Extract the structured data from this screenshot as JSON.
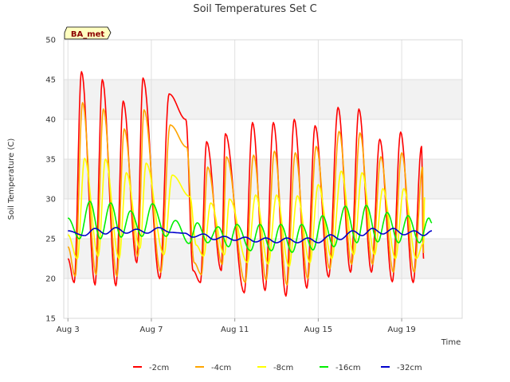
{
  "chart_data": {
    "type": "line",
    "title": "Soil Temperatures Set C",
    "xlabel": "Time",
    "ylabel": "Soil Temperature (C)",
    "station_badge": "BA_met",
    "xlim": [
      2.8,
      21.9
    ],
    "ylim": [
      15,
      50
    ],
    "x_unit": "day of August",
    "x_ticks": [
      {
        "value": 3,
        "label": "Aug 3"
      },
      {
        "value": 7,
        "label": "Aug 7"
      },
      {
        "value": 11,
        "label": "Aug 11"
      },
      {
        "value": 15,
        "label": "Aug 15"
      },
      {
        "value": 19,
        "label": "Aug 19"
      }
    ],
    "y_ticks": [
      15,
      20,
      25,
      30,
      35,
      40,
      45,
      50
    ],
    "grid": true,
    "background_bands": true,
    "legend_position": "bottom",
    "series": [
      {
        "name": "-2cm",
        "color": "#ff0000",
        "peaks": [
          [
            3.65,
            46.0
          ],
          [
            4.65,
            45.0
          ],
          [
            5.65,
            42.3
          ],
          [
            6.6,
            45.2
          ],
          [
            7.85,
            43.2
          ],
          [
            8.65,
            40.0
          ],
          [
            9.65,
            37.2
          ],
          [
            10.55,
            38.2
          ],
          [
            11.85,
            39.6
          ],
          [
            12.85,
            39.6
          ],
          [
            13.85,
            40.0
          ],
          [
            14.85,
            39.2
          ],
          [
            15.95,
            41.5
          ],
          [
            16.95,
            41.3
          ],
          [
            17.95,
            37.5
          ],
          [
            18.95,
            38.4
          ],
          [
            19.95,
            36.6
          ]
        ],
        "troughs": [
          [
            3.0,
            22.5
          ],
          [
            3.3,
            19.5
          ],
          [
            4.3,
            19.2
          ],
          [
            5.3,
            19.1
          ],
          [
            6.3,
            22.0
          ],
          [
            7.4,
            20.0
          ],
          [
            9.0,
            21.0
          ],
          [
            9.35,
            19.5
          ],
          [
            10.35,
            21.0
          ],
          [
            11.45,
            18.2
          ],
          [
            12.45,
            18.5
          ],
          [
            13.45,
            17.8
          ],
          [
            14.45,
            18.8
          ],
          [
            15.5,
            20.2
          ],
          [
            16.55,
            20.8
          ],
          [
            17.55,
            20.8
          ],
          [
            18.55,
            19.6
          ],
          [
            19.55,
            19.5
          ],
          [
            20.05,
            22.5
          ]
        ]
      },
      {
        "name": "-4cm",
        "color": "#ffa500",
        "peaks": [
          [
            3.7,
            42.1
          ],
          [
            4.7,
            41.3
          ],
          [
            5.7,
            38.8
          ],
          [
            6.65,
            41.2
          ],
          [
            7.9,
            39.3
          ],
          [
            8.7,
            36.5
          ],
          [
            9.7,
            34.0
          ],
          [
            10.6,
            35.3
          ],
          [
            11.9,
            35.5
          ],
          [
            12.9,
            36.0
          ],
          [
            13.9,
            35.8
          ],
          [
            14.9,
            36.6
          ],
          [
            16.0,
            38.5
          ],
          [
            17.0,
            38.3
          ],
          [
            18.0,
            35.3
          ],
          [
            19.0,
            35.8
          ],
          [
            20.0,
            34.0
          ]
        ],
        "troughs": [
          [
            3.0,
            24.0
          ],
          [
            3.35,
            20.3
          ],
          [
            4.35,
            20.5
          ],
          [
            5.35,
            20.3
          ],
          [
            6.35,
            22.8
          ],
          [
            7.45,
            20.8
          ],
          [
            9.05,
            22.0
          ],
          [
            9.4,
            20.5
          ],
          [
            10.4,
            21.8
          ],
          [
            11.5,
            19.5
          ],
          [
            12.5,
            19.8
          ],
          [
            13.5,
            19.2
          ],
          [
            14.5,
            20.0
          ],
          [
            15.55,
            21.2
          ],
          [
            16.6,
            21.8
          ],
          [
            17.6,
            21.8
          ],
          [
            18.6,
            20.8
          ],
          [
            19.6,
            20.8
          ],
          [
            20.05,
            23.2
          ]
        ]
      },
      {
        "name": "-8cm",
        "color": "#ffff00",
        "peaks": [
          [
            3.8,
            35.1
          ],
          [
            4.8,
            35.0
          ],
          [
            5.8,
            33.3
          ],
          [
            6.75,
            34.5
          ],
          [
            8.0,
            33.0
          ],
          [
            8.85,
            30.3
          ],
          [
            9.85,
            29.5
          ],
          [
            10.75,
            30.0
          ],
          [
            12.0,
            30.5
          ],
          [
            13.0,
            30.5
          ],
          [
            14.0,
            30.4
          ],
          [
            15.0,
            31.8
          ],
          [
            16.1,
            33.5
          ],
          [
            17.1,
            33.3
          ],
          [
            18.1,
            31.3
          ],
          [
            19.1,
            31.3
          ],
          [
            20.1,
            30.2
          ]
        ],
        "troughs": [
          [
            3.0,
            25.5
          ],
          [
            3.45,
            22.5
          ],
          [
            4.45,
            22.8
          ],
          [
            5.45,
            22.5
          ],
          [
            6.45,
            23.8
          ],
          [
            7.6,
            23.0
          ],
          [
            9.15,
            24.2
          ],
          [
            9.5,
            22.8
          ],
          [
            10.5,
            23.0
          ],
          [
            11.6,
            22.0
          ],
          [
            12.6,
            21.8
          ],
          [
            13.6,
            21.5
          ],
          [
            14.6,
            22.0
          ],
          [
            15.65,
            22.5
          ],
          [
            16.7,
            23.0
          ],
          [
            17.7,
            23.0
          ],
          [
            18.7,
            22.5
          ],
          [
            19.7,
            22.5
          ],
          [
            20.05,
            24.5
          ]
        ]
      },
      {
        "name": "-16cm",
        "color": "#00ee00",
        "peaks": [
          [
            3.0,
            27.6
          ],
          [
            4.05,
            29.7
          ],
          [
            5.05,
            29.5
          ],
          [
            6.0,
            28.5
          ],
          [
            7.05,
            29.4
          ],
          [
            8.15,
            27.3
          ],
          [
            9.2,
            27.0
          ],
          [
            10.2,
            26.5
          ],
          [
            11.1,
            26.8
          ],
          [
            12.2,
            26.8
          ],
          [
            13.2,
            26.8
          ],
          [
            14.2,
            26.8
          ],
          [
            15.2,
            27.9
          ],
          [
            16.3,
            29.1
          ],
          [
            17.3,
            29.2
          ],
          [
            18.3,
            28.3
          ],
          [
            19.3,
            27.9
          ],
          [
            20.3,
            27.6
          ],
          [
            20.45,
            27.0
          ]
        ],
        "troughs": [
          [
            3.55,
            25.0
          ],
          [
            4.55,
            25.0
          ],
          [
            5.55,
            25.2
          ],
          [
            6.55,
            25.3
          ],
          [
            7.7,
            25.3
          ],
          [
            8.8,
            24.4
          ],
          [
            9.7,
            24.5
          ],
          [
            10.7,
            24.0
          ],
          [
            11.75,
            23.5
          ],
          [
            12.75,
            23.5
          ],
          [
            13.75,
            23.3
          ],
          [
            14.75,
            23.6
          ],
          [
            15.75,
            24.0
          ],
          [
            16.85,
            24.5
          ],
          [
            17.85,
            24.6
          ],
          [
            18.85,
            24.5
          ],
          [
            19.85,
            24.5
          ]
        ]
      },
      {
        "name": "-32cm",
        "color": "#0000cc",
        "peaks": [
          [
            3.0,
            26.0
          ],
          [
            4.3,
            26.3
          ],
          [
            5.3,
            26.4
          ],
          [
            6.3,
            26.2
          ],
          [
            7.35,
            26.4
          ],
          [
            8.6,
            25.7
          ],
          [
            9.5,
            25.6
          ],
          [
            10.5,
            25.3
          ],
          [
            11.5,
            25.2
          ],
          [
            12.5,
            25.1
          ],
          [
            13.5,
            25.1
          ],
          [
            14.5,
            25.1
          ],
          [
            15.6,
            25.5
          ],
          [
            16.65,
            26.0
          ],
          [
            17.6,
            26.3
          ],
          [
            18.6,
            26.3
          ],
          [
            19.6,
            26.0
          ],
          [
            20.45,
            26.0
          ]
        ],
        "troughs": [
          [
            3.8,
            25.4
          ],
          [
            4.8,
            25.6
          ],
          [
            5.8,
            25.7
          ],
          [
            6.8,
            25.7
          ],
          [
            7.9,
            25.8
          ],
          [
            9.0,
            25.2
          ],
          [
            10.0,
            24.9
          ],
          [
            11.0,
            24.8
          ],
          [
            12.0,
            24.6
          ],
          [
            13.0,
            24.5
          ],
          [
            14.0,
            24.5
          ],
          [
            15.0,
            24.5
          ],
          [
            16.05,
            24.9
          ],
          [
            17.1,
            25.4
          ],
          [
            18.1,
            25.6
          ],
          [
            19.1,
            25.5
          ],
          [
            20.05,
            25.4
          ]
        ]
      }
    ]
  }
}
